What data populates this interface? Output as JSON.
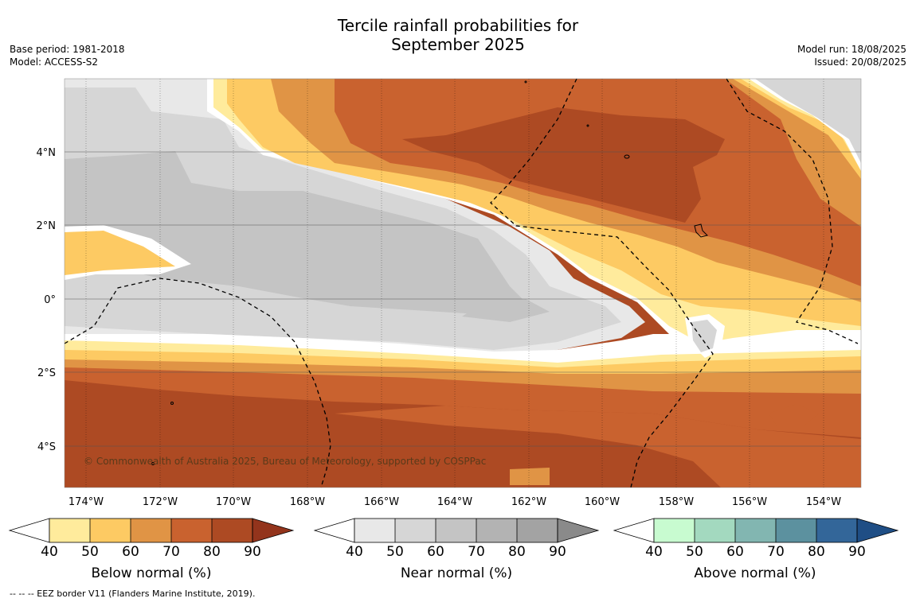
{
  "header": {
    "title_line1": "Tercile rainfall probabilities for",
    "title_line2": "September 2025",
    "base_period": "Base period: 1981-2018",
    "model": "Model: ACCESS-S2",
    "model_run": "Model run: 18/08/2025",
    "issued": "Issued: 20/08/2025"
  },
  "map": {
    "lat_labels": [
      "4°N",
      "2°N",
      "0°",
      "2°S",
      "4°S"
    ],
    "lon_labels": [
      "174°W",
      "172°W",
      "170°W",
      "168°W",
      "166°W",
      "164°W",
      "162°W",
      "160°W",
      "158°W",
      "156°W",
      "154°W"
    ],
    "copyright": "© Commonwealth of Australia 2025, Bureau of Meteorology, supported by COSPPac"
  },
  "colorbars": [
    {
      "title": "Below normal (%)",
      "ticks": [
        "40",
        "50",
        "60",
        "70",
        "80",
        "90"
      ],
      "colors": [
        "#ffeb9c",
        "#fdca63",
        "#e09445",
        "#c9622f",
        "#ad4a23",
        "#93341c"
      ]
    },
    {
      "title": "Near normal (%)",
      "ticks": [
        "40",
        "50",
        "60",
        "70",
        "80",
        "90"
      ],
      "colors": [
        "#e8e8e8",
        "#d6d6d6",
        "#c4c4c4",
        "#b3b3b3",
        "#a3a3a3",
        "#8a8a8a"
      ]
    },
    {
      "title": "Above normal (%)",
      "ticks": [
        "40",
        "50",
        "60",
        "70",
        "80",
        "90"
      ],
      "colors": [
        "#c8fbd0",
        "#a3d9bf",
        "#82b6b1",
        "#5c919f",
        "#336699",
        "#1f4e85"
      ]
    }
  ],
  "footnote": "--  --  -- EEZ border V11 (Flanders Marine Institute, 2019)."
}
